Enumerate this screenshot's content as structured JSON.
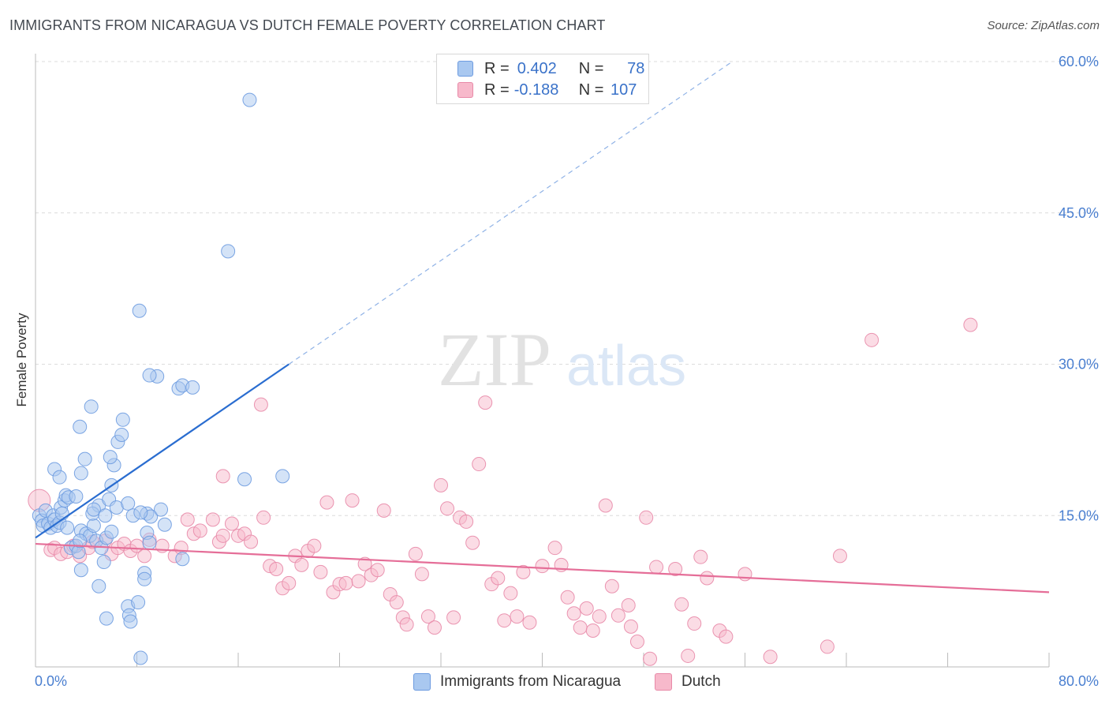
{
  "title": "IMMIGRANTS FROM NICARAGUA VS DUTCH FEMALE POVERTY CORRELATION CHART",
  "source": "Source: ZipAtlas.com",
  "watermark": {
    "zip": "ZIP",
    "atlas": "atlas"
  },
  "legend": {
    "r_label": "R =",
    "n_label": "N =",
    "rows": [
      {
        "r": "0.402",
        "n": "78",
        "color": "#a9c8f0",
        "border": "#6d9be0"
      },
      {
        "r": "-0.188",
        "n": "107",
        "color": "#f7b9cb",
        "border": "#e88aa8"
      }
    ]
  },
  "chart_data": {
    "type": "scatter",
    "ylabel": "Female Poverty",
    "xlim": [
      0,
      80
    ],
    "ylim": [
      0,
      60
    ],
    "x_tick_labels": [
      "0.0%",
      "80.0%"
    ],
    "y_ticks": [
      15,
      30,
      45,
      60
    ],
    "y_tick_labels": [
      "15.0%",
      "30.0%",
      "45.0%",
      "60.0%"
    ],
    "grid": true,
    "legend_position": "top-center",
    "series": [
      {
        "name": "Immigrants from Nicaragua",
        "color": "#a9c8f0",
        "stroke": "#6d9be0",
        "trend_color": "#2a6dd0",
        "trend": {
          "x0": 0,
          "y0": 12.8,
          "x1": 20,
          "y1": 30.0,
          "x_dash_end": 55,
          "y_dash_end": 60.0
        },
        "points": [
          [
            0.3,
            15.0
          ],
          [
            0.5,
            14.5
          ],
          [
            0.6,
            14.0
          ],
          [
            0.8,
            15.5
          ],
          [
            1.0,
            14.2
          ],
          [
            1.2,
            13.8
          ],
          [
            1.4,
            15.0
          ],
          [
            1.5,
            14.6
          ],
          [
            1.7,
            14.0
          ],
          [
            1.9,
            14.3
          ],
          [
            2.0,
            15.8
          ],
          [
            2.1,
            15.2
          ],
          [
            2.3,
            16.5
          ],
          [
            2.4,
            17.0
          ],
          [
            2.6,
            16.8
          ],
          [
            1.5,
            19.6
          ],
          [
            1.9,
            18.8
          ],
          [
            3.2,
            16.9
          ],
          [
            2.5,
            13.8
          ],
          [
            3.6,
            13.5
          ],
          [
            2.8,
            11.8
          ],
          [
            3.2,
            12.0
          ],
          [
            3.4,
            11.4
          ],
          [
            4.0,
            13.2
          ],
          [
            4.3,
            13.0
          ],
          [
            3.6,
            9.6
          ],
          [
            3.5,
            12.5
          ],
          [
            4.6,
            14.0
          ],
          [
            4.8,
            12.5
          ],
          [
            5.2,
            11.8
          ],
          [
            5.4,
            10.4
          ],
          [
            5.0,
            8.0
          ],
          [
            5.0,
            16.0
          ],
          [
            4.5,
            15.2
          ],
          [
            3.5,
            23.8
          ],
          [
            3.9,
            20.6
          ],
          [
            3.6,
            19.2
          ],
          [
            4.4,
            25.8
          ],
          [
            4.6,
            15.6
          ],
          [
            5.5,
            15.0
          ],
          [
            5.8,
            16.6
          ],
          [
            6.4,
            15.8
          ],
          [
            6.0,
            18.0
          ],
          [
            6.2,
            20.0
          ],
          [
            5.9,
            20.8
          ],
          [
            6.5,
            22.3
          ],
          [
            6.8,
            23.0
          ],
          [
            6.9,
            24.5
          ],
          [
            7.3,
            16.2
          ],
          [
            7.7,
            15.0
          ],
          [
            5.6,
            12.8
          ],
          [
            6.0,
            13.4
          ],
          [
            7.3,
            6.0
          ],
          [
            5.6,
            4.8
          ],
          [
            7.4,
            5.1
          ],
          [
            7.5,
            4.5
          ],
          [
            8.1,
            6.4
          ],
          [
            8.6,
            9.3
          ],
          [
            8.6,
            8.7
          ],
          [
            8.8,
            15.2
          ],
          [
            9.1,
            14.9
          ],
          [
            8.3,
            15.3
          ],
          [
            8.8,
            13.3
          ],
          [
            9.0,
            12.3
          ],
          [
            9.9,
            15.6
          ],
          [
            10.2,
            14.1
          ],
          [
            11.6,
            10.7
          ],
          [
            9.6,
            28.8
          ],
          [
            9.0,
            28.9
          ],
          [
            8.2,
            35.3
          ],
          [
            11.3,
            27.6
          ],
          [
            11.6,
            27.9
          ],
          [
            12.4,
            27.7
          ],
          [
            15.2,
            41.2
          ],
          [
            16.5,
            18.6
          ],
          [
            19.5,
            18.9
          ],
          [
            16.9,
            56.2
          ],
          [
            8.3,
            0.9
          ]
        ]
      },
      {
        "name": "Dutch",
        "color": "#f7b9cb",
        "stroke": "#e88aa8",
        "trend_color": "#e56e98",
        "trend": {
          "x0": 0,
          "y0": 12.2,
          "x1": 80,
          "y1": 7.4
        },
        "points": [
          [
            0.3,
            16.5
          ],
          [
            1.2,
            11.6
          ],
          [
            1.5,
            11.8
          ],
          [
            2.0,
            11.2
          ],
          [
            2.5,
            11.4
          ],
          [
            3.0,
            12.0
          ],
          [
            3.5,
            11.0
          ],
          [
            4.2,
            11.8
          ],
          [
            4.5,
            12.4
          ],
          [
            5.5,
            12.5
          ],
          [
            6.0,
            11.2
          ],
          [
            6.5,
            11.8
          ],
          [
            7.0,
            12.2
          ],
          [
            7.5,
            11.5
          ],
          [
            8.0,
            12.0
          ],
          [
            8.6,
            11.0
          ],
          [
            9.0,
            12.6
          ],
          [
            10.0,
            12.0
          ],
          [
            11.0,
            11.0
          ],
          [
            11.5,
            11.8
          ],
          [
            12.0,
            14.6
          ],
          [
            12.5,
            13.2
          ],
          [
            13.0,
            13.5
          ],
          [
            14.0,
            14.6
          ],
          [
            14.5,
            12.4
          ],
          [
            14.8,
            18.9
          ],
          [
            15.5,
            14.2
          ],
          [
            16.0,
            13.0
          ],
          [
            16.5,
            13.2
          ],
          [
            17.0,
            12.4
          ],
          [
            18.0,
            14.8
          ],
          [
            18.5,
            10.0
          ],
          [
            19.0,
            9.7
          ],
          [
            19.5,
            7.8
          ],
          [
            20.0,
            8.3
          ],
          [
            20.5,
            11.0
          ],
          [
            21.0,
            10.1
          ],
          [
            21.5,
            11.5
          ],
          [
            22.0,
            12.0
          ],
          [
            22.5,
            9.4
          ],
          [
            23.0,
            16.3
          ],
          [
            23.5,
            7.4
          ],
          [
            24.0,
            8.2
          ],
          [
            24.5,
            8.3
          ],
          [
            25.0,
            16.5
          ],
          [
            25.5,
            8.5
          ],
          [
            26.0,
            10.2
          ],
          [
            26.5,
            9.1
          ],
          [
            27.0,
            9.6
          ],
          [
            27.5,
            15.5
          ],
          [
            28.0,
            7.2
          ],
          [
            28.5,
            6.4
          ],
          [
            29.0,
            4.9
          ],
          [
            29.3,
            4.2
          ],
          [
            30.0,
            11.2
          ],
          [
            30.5,
            9.2
          ],
          [
            31.0,
            5.0
          ],
          [
            31.5,
            3.9
          ],
          [
            32.0,
            18.0
          ],
          [
            32.5,
            15.7
          ],
          [
            33.0,
            4.9
          ],
          [
            33.5,
            14.8
          ],
          [
            34.0,
            14.4
          ],
          [
            34.5,
            12.3
          ],
          [
            35.0,
            20.1
          ],
          [
            35.5,
            26.2
          ],
          [
            36.0,
            8.2
          ],
          [
            36.5,
            8.8
          ],
          [
            37.0,
            4.6
          ],
          [
            37.5,
            7.3
          ],
          [
            38.0,
            5.0
          ],
          [
            38.5,
            9.4
          ],
          [
            39.0,
            4.4
          ],
          [
            40.0,
            10.0
          ],
          [
            41.0,
            11.8
          ],
          [
            41.5,
            10.1
          ],
          [
            42.0,
            6.9
          ],
          [
            42.5,
            5.3
          ],
          [
            43.0,
            3.9
          ],
          [
            43.5,
            5.8
          ],
          [
            44.0,
            3.6
          ],
          [
            44.5,
            5.0
          ],
          [
            45.0,
            16.0
          ],
          [
            45.5,
            8.0
          ],
          [
            46.0,
            5.1
          ],
          [
            46.8,
            6.1
          ],
          [
            47.0,
            4.0
          ],
          [
            47.5,
            2.5
          ],
          [
            48.2,
            14.8
          ],
          [
            48.5,
            0.8
          ],
          [
            49.0,
            9.9
          ],
          [
            50.5,
            9.7
          ],
          [
            51.0,
            6.2
          ],
          [
            51.5,
            1.1
          ],
          [
            52.0,
            4.3
          ],
          [
            52.5,
            10.9
          ],
          [
            53.0,
            8.8
          ],
          [
            54.0,
            3.6
          ],
          [
            54.5,
            3.0
          ],
          [
            56.0,
            9.2
          ],
          [
            58.0,
            1.0
          ],
          [
            62.5,
            2.0
          ],
          [
            63.5,
            11.0
          ],
          [
            66.0,
            32.4
          ],
          [
            73.8,
            33.9
          ],
          [
            14.8,
            13.0
          ],
          [
            17.8,
            26.0
          ]
        ]
      }
    ]
  }
}
